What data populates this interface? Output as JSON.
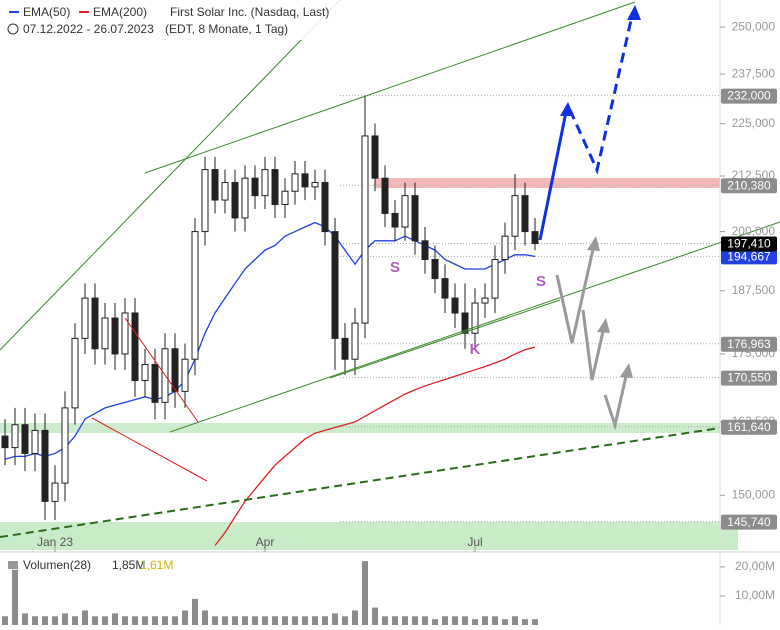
{
  "chart_data": {
    "type": "candlestick",
    "title": "First Solar Inc. (Nasdaq, Last)",
    "subtitle": "07.12.2022 - 26.07.2023",
    "note": "(EDT, 8 Monate, 1 Tag)",
    "log_scale": true,
    "ylim": [
      141.3,
      257.5
    ],
    "yticks": [
      {
        "value": 250,
        "label": "250,000"
      },
      {
        "value": 237.5,
        "label": "237,500"
      },
      {
        "value": 225,
        "label": "225,000"
      },
      {
        "value": 212.5,
        "label": "212,500"
      },
      {
        "value": 200,
        "label": "200,000"
      },
      {
        "value": 187.5,
        "label": "187,500"
      },
      {
        "value": 175,
        "label": "175,000"
      },
      {
        "value": 162.5,
        "label": "162,500"
      },
      {
        "value": 150,
        "label": "150,000"
      }
    ],
    "categories": [
      null,
      null,
      null,
      null,
      null,
      "Jan 23",
      null,
      null,
      null,
      null,
      null,
      null,
      null,
      null,
      null,
      null,
      null,
      null,
      null,
      null,
      null,
      null,
      null,
      null,
      null,
      null,
      "Apr",
      null,
      null,
      null,
      null,
      null,
      null,
      null,
      null,
      null,
      null,
      null,
      null,
      null,
      null,
      null,
      null,
      null,
      null,
      null,
      null,
      "Jul",
      null,
      null,
      null,
      null,
      null,
      null
    ],
    "candles": {
      "color": "#222222",
      "open": [
        160,
        158,
        162,
        157,
        161,
        149,
        152,
        165,
        178,
        186,
        176,
        182,
        175,
        183,
        170,
        173,
        166,
        176,
        168,
        174,
        200,
        214,
        207,
        211,
        203,
        212,
        208,
        214,
        206,
        209,
        213,
        210,
        211,
        200,
        178,
        174,
        181,
        222,
        212,
        204,
        201,
        208,
        198,
        194,
        190,
        186,
        183,
        179,
        185,
        186,
        194,
        199,
        208,
        200
      ],
      "high": [
        163,
        165,
        165,
        164,
        164,
        155,
        168,
        181,
        189,
        189,
        185,
        185,
        186,
        186,
        176,
        176,
        179,
        179,
        177,
        203,
        217,
        217,
        214,
        214,
        215,
        215,
        217,
        217,
        212,
        216,
        216,
        214,
        214,
        203,
        181,
        184,
        232,
        225,
        215,
        207,
        211,
        211,
        201,
        197,
        193,
        189,
        189,
        188,
        189,
        197,
        202,
        213,
        211,
        203
      ],
      "low": [
        155,
        155,
        154,
        154,
        146,
        146,
        149,
        162,
        175,
        173,
        173,
        172,
        172,
        167,
        167,
        163,
        163,
        165,
        165,
        171,
        197,
        204,
        204,
        200,
        200,
        205,
        205,
        203,
        203,
        206,
        207,
        207,
        197,
        172,
        171,
        171,
        178,
        209,
        201,
        198,
        198,
        195,
        191,
        187,
        183,
        180,
        176,
        176,
        182,
        183,
        191,
        196,
        197,
        196
      ],
      "close": [
        158,
        162,
        157,
        161,
        149,
        152,
        165,
        178,
        186,
        176,
        182,
        175,
        183,
        170,
        173,
        166,
        176,
        168,
        174,
        200,
        214,
        207,
        211,
        203,
        212,
        208,
        214,
        206,
        209,
        213,
        210,
        211,
        200,
        178,
        174,
        181,
        222,
        212,
        204,
        201,
        208,
        198,
        194,
        190,
        186,
        183,
        179,
        185,
        186,
        194,
        199,
        208,
        200,
        197.41
      ]
    },
    "series": [
      {
        "name": "EMA(50)",
        "color": "#2040e0",
        "values": [
          156,
          156.5,
          156.5,
          157,
          156.5,
          157,
          158,
          160,
          163,
          164,
          165,
          165.5,
          166,
          166.5,
          167,
          166.5,
          167,
          168,
          170,
          174,
          179,
          183,
          186,
          189,
          192,
          194,
          196,
          197,
          199,
          200,
          201,
          202,
          201,
          199,
          196,
          193,
          196,
          198,
          198,
          198,
          199,
          198,
          197,
          196,
          194,
          193,
          192,
          192,
          192,
          193,
          194,
          195,
          195,
          194.667
        ]
      },
      {
        "name": "EMA(200)",
        "color": "#e02020",
        "values": [
          null,
          null,
          null,
          null,
          null,
          null,
          null,
          null,
          null,
          null,
          null,
          null,
          null,
          null,
          null,
          null,
          null,
          null,
          null,
          null,
          null,
          142,
          144,
          146.5,
          149,
          151,
          153,
          155,
          156.5,
          158,
          159.5,
          160.5,
          161,
          161.5,
          162,
          162.5,
          163.5,
          164.5,
          165.5,
          166.5,
          167.5,
          168.3,
          169,
          169.6,
          170.2,
          170.8,
          171.4,
          172,
          172.6,
          173.3,
          174,
          175,
          175.8,
          176.3
        ]
      }
    ],
    "levels": [
      {
        "value": 232,
        "label": "232,000",
        "color": "#8c8c8c"
      },
      {
        "value": 210.38,
        "label": "210,380",
        "color": "#8c8c8c"
      },
      {
        "value": 194.667,
        "label": "194,667",
        "color": "#2040e0"
      },
      {
        "value": 197.41,
        "label": "197,410",
        "color": "#000000"
      },
      {
        "value": 176.963,
        "label": "176,963",
        "color": "#8c8c8c"
      },
      {
        "value": 170.55,
        "label": "170,550",
        "color": "#8c8c8c"
      },
      {
        "value": 161.64,
        "label": "161,640",
        "color": "#8c8c8c"
      },
      {
        "value": 145.74,
        "label": "145,740",
        "color": "#8c8c8c"
      }
    ],
    "annotations": [
      "S",
      "K",
      "S"
    ],
    "volume": {
      "name": "Volumen(28)",
      "labels": [
        "1,85M",
        "1,61M"
      ],
      "color": "#8c8c8c",
      "ylim": [
        0,
        24.1
      ],
      "yticks": [
        {
          "value": 20,
          "label": "20,00M"
        },
        {
          "value": 10,
          "label": "10,00M"
        }
      ],
      "values": [
        3,
        19,
        4,
        3,
        3,
        3,
        4,
        3,
        5,
        3,
        3,
        4,
        3,
        3,
        3,
        3,
        3,
        3,
        5,
        9,
        5,
        3,
        3,
        3,
        3,
        3,
        3,
        3,
        3,
        3,
        3,
        3,
        3,
        4,
        3,
        5,
        22,
        6,
        3,
        3,
        3,
        3,
        3,
        2,
        3,
        3,
        3,
        2,
        3,
        3,
        2,
        3,
        2,
        2
      ]
    }
  }
}
